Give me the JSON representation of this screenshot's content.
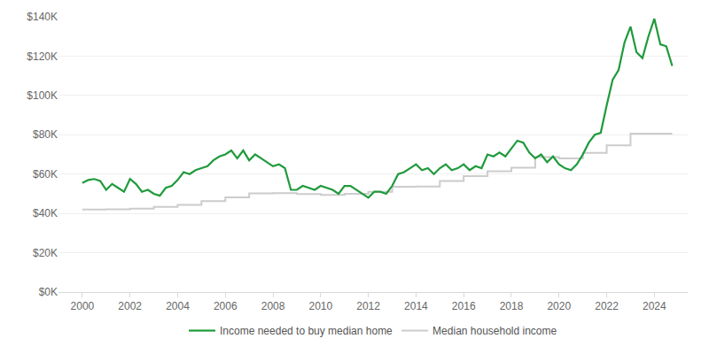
{
  "chart_data": {
    "type": "line",
    "xlim": [
      1999.0,
      2025.4
    ],
    "xticks": [
      2000,
      2002,
      2004,
      2006,
      2008,
      2010,
      2012,
      2014,
      2016,
      2018,
      2020,
      2022,
      2024
    ],
    "ylim": [
      0,
      140000
    ],
    "yticks": [
      {
        "value": 0,
        "label": "$0K"
      },
      {
        "value": 20000,
        "label": "$20K"
      },
      {
        "value": 40000,
        "label": "$40K"
      },
      {
        "value": 60000,
        "label": "$60K"
      },
      {
        "value": 80000,
        "label": "$80K"
      },
      {
        "value": 100000,
        "label": "$100K"
      },
      {
        "value": 120000,
        "label": "$120K"
      },
      {
        "value": 140000,
        "label": "$140K"
      }
    ],
    "grid": true,
    "legend": "bottom",
    "series": [
      {
        "name": "Income needed to buy median home",
        "color": "#1f9a3c",
        "line_style": "solid",
        "x": [
          2000,
          2000.25,
          2000.5,
          2000.75,
          2001,
          2001.25,
          2001.5,
          2001.75,
          2002,
          2002.25,
          2002.5,
          2002.75,
          2003,
          2003.25,
          2003.5,
          2003.75,
          2004,
          2004.25,
          2004.5,
          2004.75,
          2005,
          2005.25,
          2005.5,
          2005.75,
          2006,
          2006.25,
          2006.5,
          2006.75,
          2007,
          2007.25,
          2007.5,
          2007.75,
          2008,
          2008.25,
          2008.5,
          2008.75,
          2009,
          2009.25,
          2009.5,
          2009.75,
          2010,
          2010.25,
          2010.5,
          2010.75,
          2011,
          2011.25,
          2011.5,
          2011.75,
          2012,
          2012.25,
          2012.5,
          2012.75,
          2013,
          2013.25,
          2013.5,
          2013.75,
          2014,
          2014.25,
          2014.5,
          2014.75,
          2015,
          2015.25,
          2015.5,
          2015.75,
          2016,
          2016.25,
          2016.5,
          2016.75,
          2017,
          2017.25,
          2017.5,
          2017.75,
          2018,
          2018.25,
          2018.5,
          2018.75,
          2019,
          2019.25,
          2019.5,
          2019.75,
          2020,
          2020.25,
          2020.5,
          2020.75,
          2021,
          2021.25,
          2021.5,
          2021.75,
          2022,
          2022.25,
          2022.5,
          2022.75,
          2023,
          2023.25,
          2023.5,
          2023.75,
          2024,
          2024.25,
          2024.5,
          2024.75
        ],
        "values": [
          55500,
          57000,
          57500,
          56500,
          52000,
          55000,
          53000,
          51000,
          57500,
          55000,
          51000,
          52000,
          50000,
          49000,
          53000,
          54000,
          57000,
          61000,
          60000,
          62000,
          63000,
          64000,
          67000,
          69000,
          70000,
          72000,
          68000,
          72000,
          67000,
          70000,
          68000,
          66000,
          64000,
          65000,
          63000,
          52000,
          52000,
          54000,
          53000,
          52000,
          54000,
          53000,
          52000,
          50000,
          54000,
          54000,
          52000,
          50000,
          48000,
          51000,
          51000,
          50000,
          54000,
          60000,
          61000,
          63000,
          65000,
          62000,
          63000,
          60000,
          63000,
          65000,
          62000,
          63000,
          65000,
          62000,
          64000,
          63000,
          70000,
          69000,
          71000,
          69000,
          73000,
          77000,
          76000,
          71000,
          68000,
          70000,
          66000,
          69000,
          65000,
          63000,
          62000,
          65000,
          70000,
          76000,
          80000,
          81000,
          95000,
          108000,
          113000,
          127000,
          135000,
          122000,
          119000,
          130000,
          139000,
          126000,
          125000,
          115000
        ]
      },
      {
        "name": "Median household income",
        "color": "#cccccc",
        "line_style": "step",
        "x": [
          2000,
          2001,
          2002,
          2003,
          2004,
          2005,
          2006,
          2007,
          2008,
          2009,
          2010,
          2011,
          2012,
          2013,
          2014,
          2015,
          2016,
          2017,
          2018,
          2019,
          2020,
          2021,
          2022,
          2023,
          2024.75
        ],
        "values": [
          42000,
          42100,
          42400,
          43300,
          44300,
          46300,
          48200,
          50200,
          50300,
          49800,
          49400,
          50000,
          51000,
          53600,
          53700,
          56500,
          59000,
          61400,
          63200,
          68700,
          68000,
          70800,
          74600,
          80600,
          80600
        ]
      }
    ]
  }
}
